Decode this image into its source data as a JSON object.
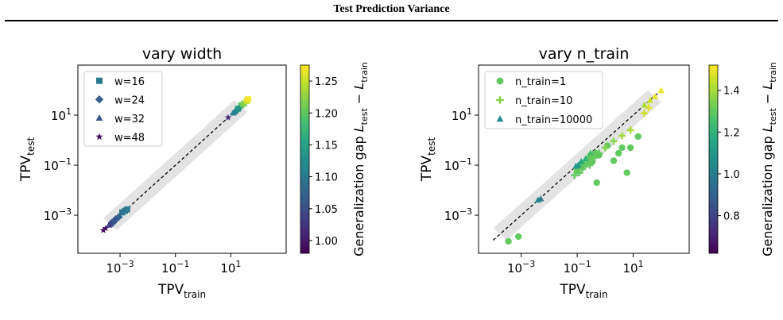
{
  "header": {
    "title": "Test Prediction Variance"
  },
  "colorbar_label": "Generalization gap",
  "colorbar_formula": {
    "L": "L",
    "test": "test",
    "minus": "−",
    "train": "train"
  },
  "axis_text": {
    "tpv": "TPV",
    "test_sub": "test",
    "train_sub": "train"
  },
  "colors": {
    "reference_band": "#e3e3e3",
    "reference_line": "#000000",
    "colormap": "viridis"
  },
  "chart_data": [
    {
      "type": "scatter",
      "title": "vary width",
      "xscale": "log",
      "yscale": "log",
      "xlim": [
        3e-05,
        1000
      ],
      "ylim": [
        3e-05,
        1000
      ],
      "xticks": [
        {
          "value": 0.001,
          "base": "10",
          "exp": "−3"
        },
        {
          "value": 0.1,
          "base": "10",
          "exp": "−1"
        },
        {
          "value": 10,
          "base": "10",
          "exp": "1"
        }
      ],
      "yticks": [
        {
          "value": 0.001,
          "base": "10",
          "exp": "−3"
        },
        {
          "value": 0.1,
          "base": "10",
          "exp": "−1"
        },
        {
          "value": 10,
          "base": "10",
          "exp": "1"
        }
      ],
      "xlabel": "TPV_train",
      "ylabel": "TPV_test",
      "legend_position": "top-left",
      "reference_line": {
        "from": 0.00025,
        "to": 40
      },
      "colorbar": {
        "range": [
          0.98,
          1.275
        ],
        "ticks": [
          "1.00",
          "1.05",
          "1.10",
          "1.15",
          "1.20",
          "1.25"
        ],
        "tick_values": [
          1.0,
          1.05,
          1.1,
          1.15,
          1.2,
          1.25
        ]
      },
      "series": [
        {
          "name": "w=16",
          "marker": "square",
          "points": [
            [
              0.0015,
              0.0015,
              1.1
            ],
            [
              0.0018,
              0.0017,
              1.1
            ],
            [
              0.0012,
              0.0013,
              1.09
            ],
            [
              18,
              18,
              1.17
            ],
            [
              24,
              25,
              1.2
            ],
            [
              30,
              29,
              1.22
            ],
            [
              38,
              37,
              1.25
            ],
            [
              42,
              43,
              1.27
            ]
          ]
        },
        {
          "name": "w=24",
          "marker": "diamond",
          "points": [
            [
              0.0005,
              0.0005,
              1.05
            ],
            [
              0.0007,
              0.0007,
              1.06
            ],
            [
              0.0009,
              0.00085,
              1.07
            ],
            [
              0.0006,
              0.00055,
              1.06
            ],
            [
              15,
              14,
              1.12
            ],
            [
              19,
              18,
              1.13
            ]
          ]
        },
        {
          "name": "w=32",
          "marker": "triangle",
          "points": [
            [
              0.0004,
              0.0004,
              1.03
            ],
            [
              0.00045,
              0.00043,
              1.04
            ],
            [
              12,
              12,
              1.1
            ],
            [
              14,
              13.5,
              1.11
            ]
          ]
        },
        {
          "name": "w=48",
          "marker": "star",
          "points": [
            [
              0.00025,
              0.00025,
              0.99
            ],
            [
              0.0003,
              0.0003,
              1.0
            ],
            [
              8,
              8,
              1.02
            ]
          ]
        }
      ]
    },
    {
      "type": "scatter",
      "title": "vary n_train",
      "xscale": "log",
      "yscale": "log",
      "xlim": [
        3e-05,
        1000
      ],
      "ylim": [
        3e-05,
        1000
      ],
      "xticks": [
        {
          "value": 0.001,
          "base": "10",
          "exp": "−3"
        },
        {
          "value": 0.1,
          "base": "10",
          "exp": "−1"
        },
        {
          "value": 10,
          "base": "10",
          "exp": "1"
        }
      ],
      "yticks": [
        {
          "value": 0.001,
          "base": "10",
          "exp": "−3"
        },
        {
          "value": 0.1,
          "base": "10",
          "exp": "−1"
        },
        {
          "value": 10,
          "base": "10",
          "exp": "1"
        }
      ],
      "xlabel": "TPV_train",
      "ylabel": "TPV_test",
      "legend_position": "top-left",
      "reference_line": {
        "from": 0.0001,
        "to": 100
      },
      "colorbar": {
        "range": [
          0.62,
          1.52
        ],
        "ticks": [
          "0.8",
          "1.0",
          "1.2",
          "1.4"
        ],
        "tick_values": [
          0.8,
          1.0,
          1.2,
          1.4
        ]
      },
      "series": [
        {
          "name": "n_train=1",
          "marker": "circle",
          "points": [
            [
              0.00035,
              9e-05,
              1.3
            ],
            [
              0.0008,
              0.00014,
              1.3
            ],
            [
              0.1,
              0.06,
              1.3
            ],
            [
              0.14,
              0.09,
              1.3
            ],
            [
              0.2,
              0.12,
              1.3
            ],
            [
              0.25,
              0.18,
              1.3
            ],
            [
              0.3,
              0.25,
              1.3
            ],
            [
              0.35,
              0.14,
              1.3
            ],
            [
              0.45,
              0.3,
              1.3
            ],
            [
              0.5,
              0.02,
              1.3
            ],
            [
              0.6,
              0.25,
              1.3
            ],
            [
              1.2,
              0.6,
              1.3
            ],
            [
              2,
              0.15,
              1.3
            ],
            [
              3,
              0.3,
              1.3
            ],
            [
              4,
              0.5,
              1.3
            ],
            [
              6,
              0.05,
              1.3
            ],
            [
              8,
              0.5,
              1.3
            ],
            [
              15,
              1.4,
              1.3
            ]
          ]
        },
        {
          "name": "n_train=10",
          "marker": "plus",
          "points": [
            [
              0.08,
              0.04,
              1.3
            ],
            [
              0.12,
              0.05,
              1.3
            ],
            [
              0.15,
              0.07,
              1.3
            ],
            [
              0.18,
              0.09,
              1.3
            ],
            [
              0.22,
              0.11,
              1.3
            ],
            [
              0.28,
              0.1,
              1.3
            ],
            [
              0.32,
              0.15,
              1.3
            ],
            [
              0.4,
              0.2,
              1.3
            ],
            [
              0.6,
              0.3,
              1.3
            ],
            [
              1,
              0.5,
              1.35
            ],
            [
              2,
              0.9,
              1.35
            ],
            [
              4,
              1.5,
              1.4
            ],
            [
              8,
              2.5,
              1.4
            ],
            [
              25,
              12,
              1.45
            ],
            [
              35,
              20,
              1.48
            ]
          ]
        },
        {
          "name": "n_train=10000",
          "marker": "triangle",
          "points": [
            [
              0.004,
              0.004,
              1.05
            ],
            [
              0.005,
              0.0045,
              1.0
            ],
            [
              0.09,
              0.09,
              1.1
            ],
            [
              0.11,
              0.1,
              1.1
            ],
            [
              0.14,
              0.14,
              1.15
            ],
            [
              0.2,
              0.18,
              1.2
            ],
            [
              0.3,
              0.3,
              1.25
            ],
            [
              25,
              25,
              1.4
            ],
            [
              40,
              38,
              1.45
            ],
            [
              60,
              55,
              1.48
            ],
            [
              100,
              95,
              1.5
            ]
          ]
        }
      ]
    }
  ]
}
